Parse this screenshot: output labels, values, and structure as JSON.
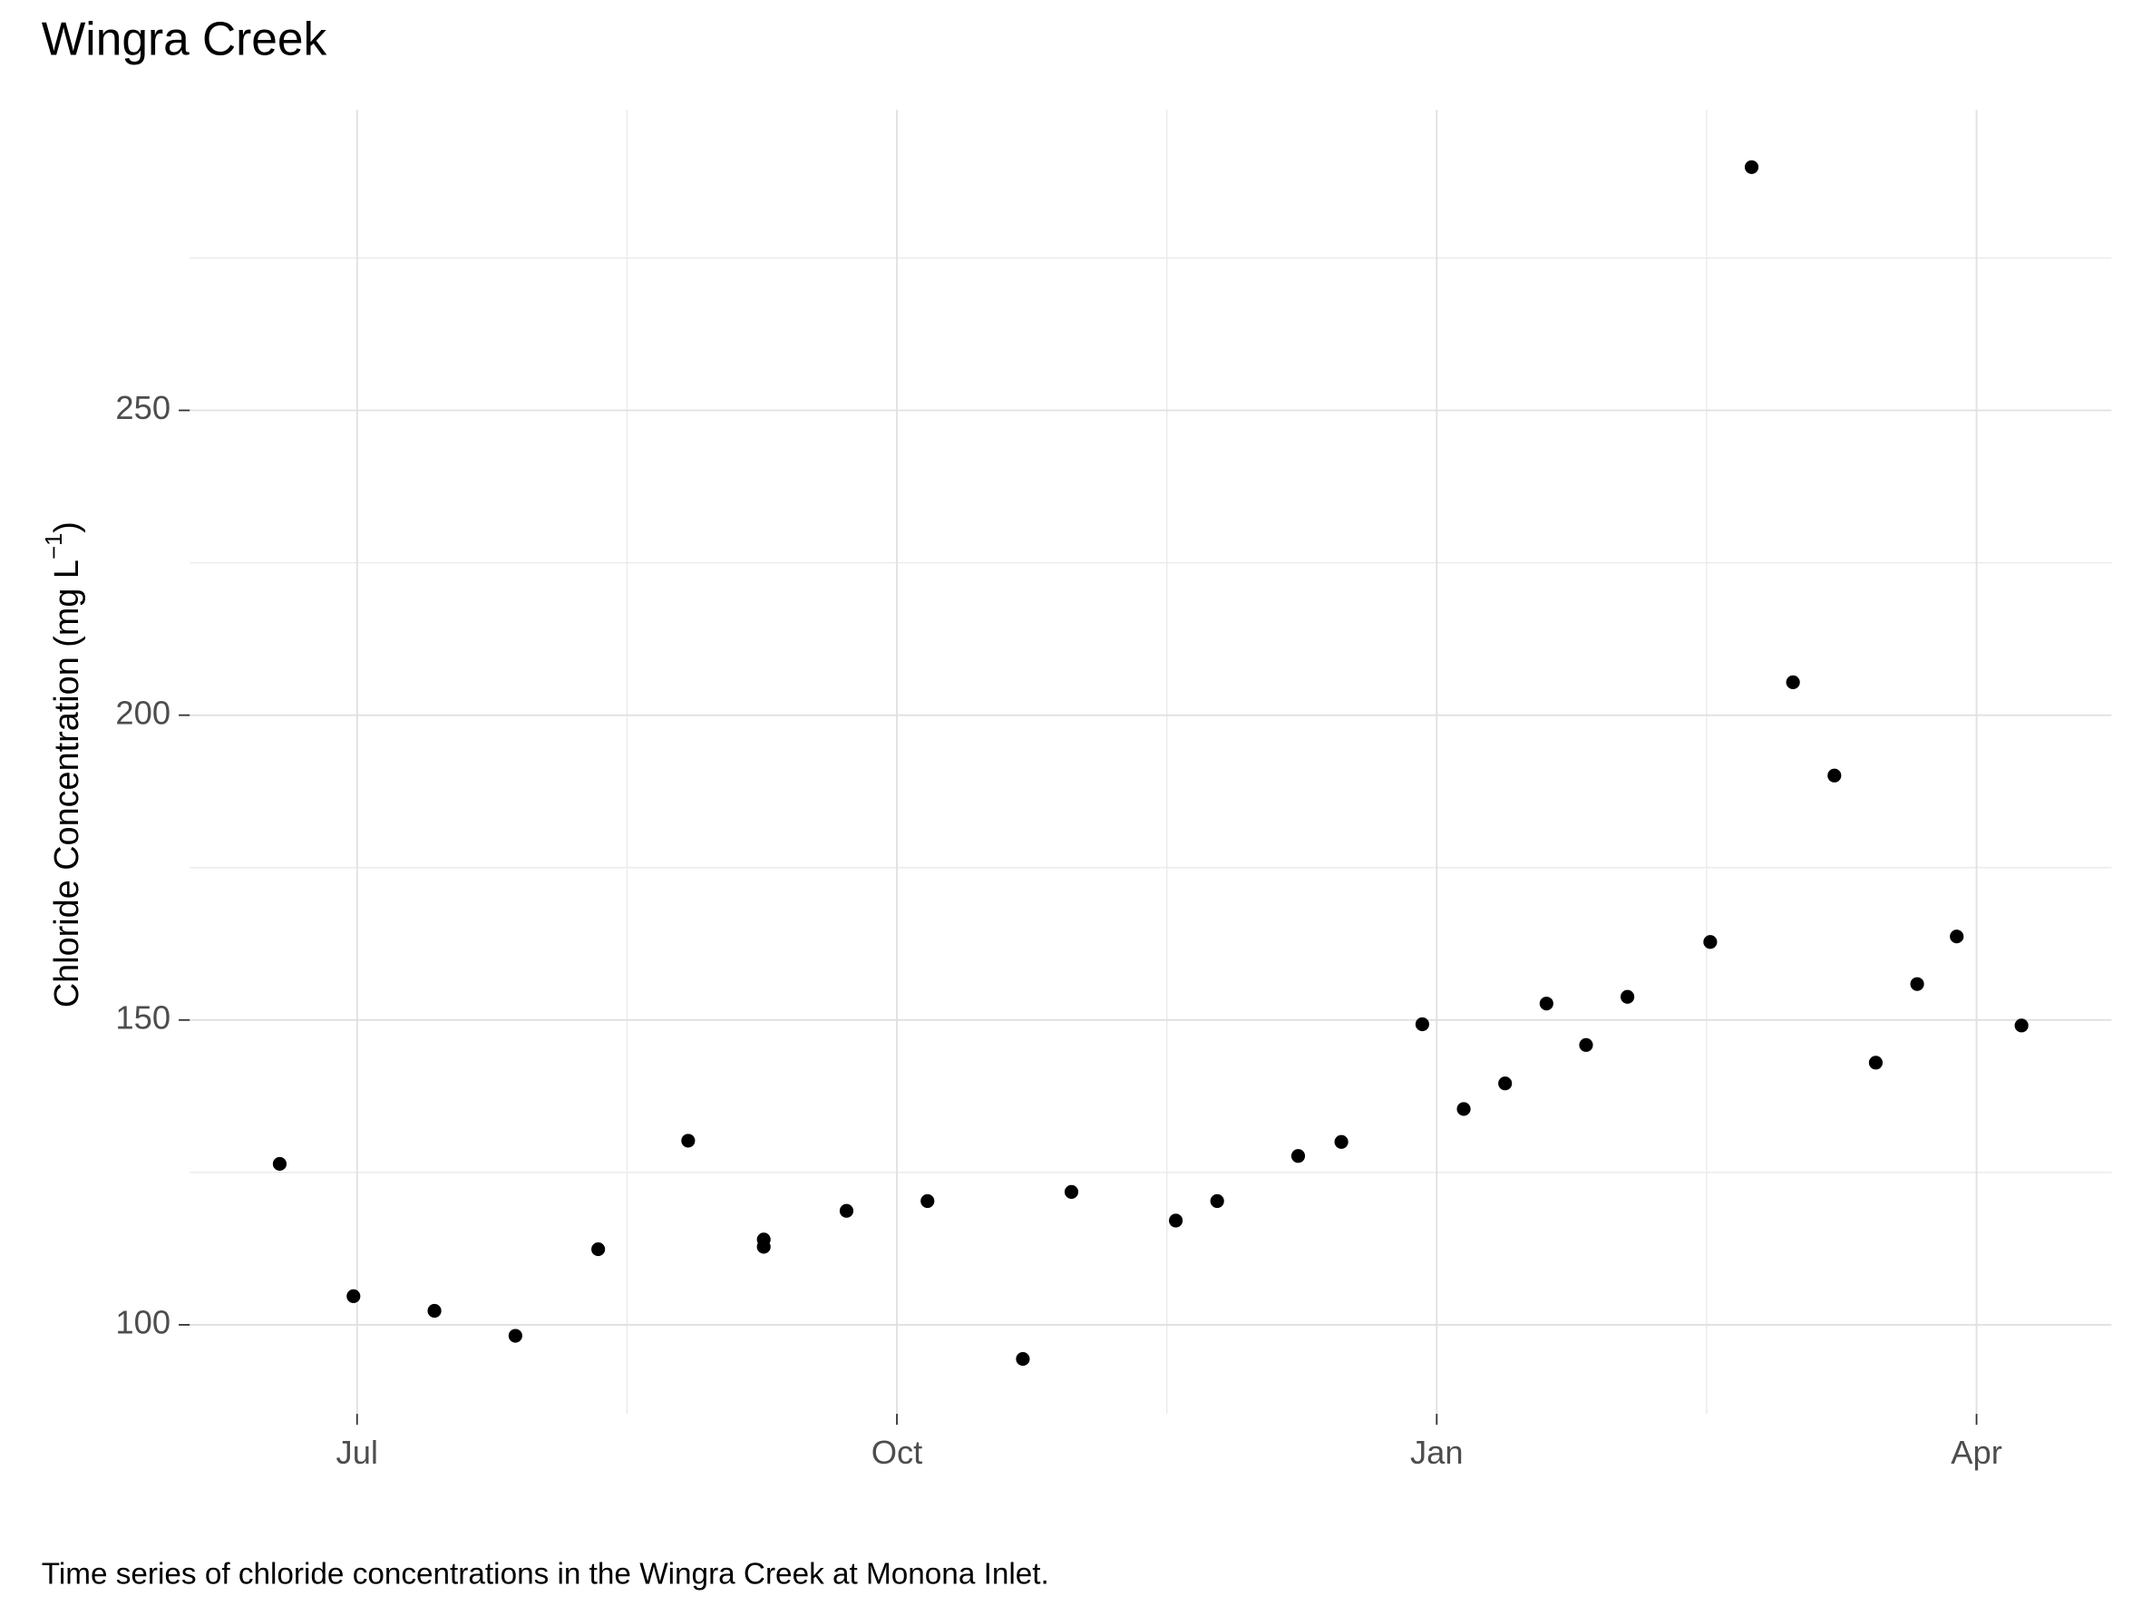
{
  "chart_data": {
    "type": "scatter",
    "title": "Wingra Creek",
    "y_label": {
      "prefix": "Chloride Concentration (mg L",
      "superscript": "−1",
      "suffix": ")"
    },
    "caption": "Time series of chloride concentrations in the Wingra Creek at Monona Inlet.",
    "x": [
      6.57,
      6.98,
      7.43,
      7.88,
      8.34,
      8.84,
      9.26,
      9.26,
      9.72,
      10.17,
      10.7,
      10.97,
      11.55,
      11.78,
      12.23,
      12.47,
      12.92,
      13.15,
      13.38,
      13.61,
      13.83,
      14.06,
      14.52,
      14.75,
      14.98,
      15.21,
      15.44,
      15.67,
      15.89,
      16.25
    ],
    "values": [
      126.4,
      104.7,
      102.3,
      98.2,
      112.4,
      130.2,
      114.0,
      112.8,
      118.7,
      120.3,
      94.4,
      121.8,
      117.1,
      120.3,
      127.7,
      130.0,
      149.3,
      135.4,
      139.6,
      152.7,
      145.9,
      153.8,
      162.8,
      289.9,
      205.4,
      190.1,
      143.0,
      155.9,
      163.7,
      149.1
    ],
    "color": "#000000",
    "xlim": [
      6.07,
      16.75
    ],
    "xticks": [
      {
        "value": 7,
        "label": "Jul"
      },
      {
        "value": 10,
        "label": "Oct"
      },
      {
        "value": 13,
        "label": "Jan"
      },
      {
        "value": 16,
        "label": "Apr"
      }
    ],
    "x_minor_grid": [
      8.5,
      11.5,
      14.5
    ],
    "ylim": [
      85.4,
      299.3
    ],
    "yticks": [
      100,
      150,
      200,
      250
    ],
    "y_minor_grid": [
      125,
      175,
      225,
      275
    ],
    "grid": true
  }
}
